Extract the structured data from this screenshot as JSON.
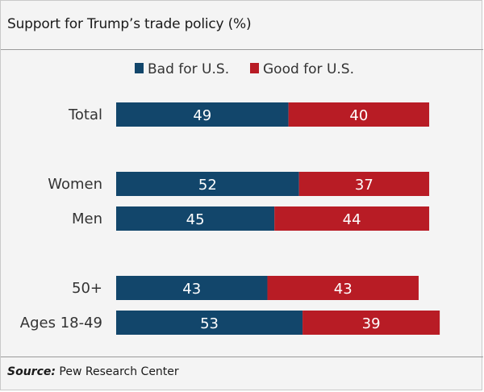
{
  "chart_data": {
    "type": "bar",
    "orientation": "horizontal",
    "stacked": true,
    "title": "Support for Trump’s trade policy (%)",
    "categories": [
      "Total",
      "Women",
      "Men",
      "50+",
      "Ages 18-49"
    ],
    "series": [
      {
        "name": "Bad for U.S.",
        "color": "#12466b",
        "values": [
          49,
          52,
          45,
          43,
          53
        ]
      },
      {
        "name": "Good for U.S.",
        "color": "#b81c25",
        "values": [
          40,
          37,
          44,
          43,
          39
        ]
      }
    ],
    "xlim": [
      0,
      100
    ],
    "grid": false,
    "legend": "top-center"
  },
  "source": {
    "label": "Source:",
    "text": " Pew Research Center"
  }
}
